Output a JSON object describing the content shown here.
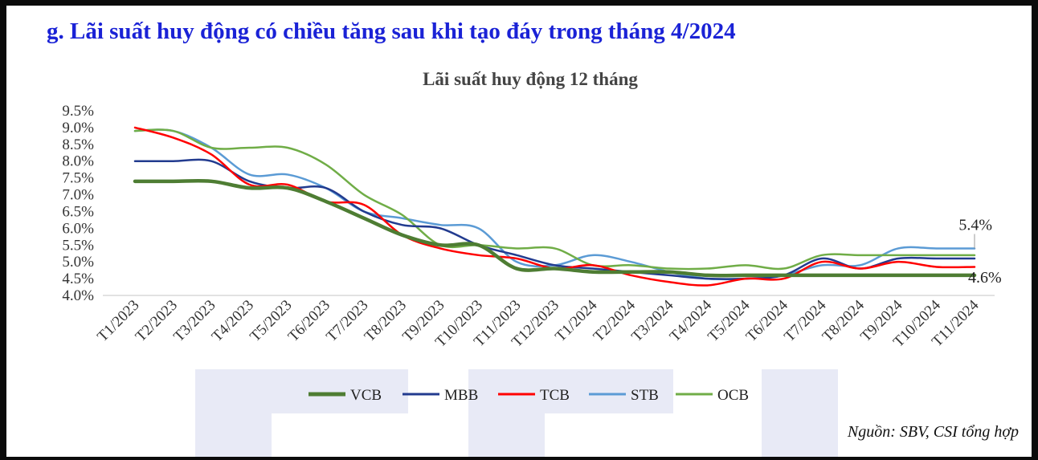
{
  "heading": "g. Lãi suất huy động có chiều tăng sau khi tạo đáy trong tháng 4/2024",
  "source": "Nguồn: SBV, CSI tổng hợp",
  "chart_data": {
    "type": "line",
    "title": "Lãi suất huy động 12 tháng",
    "xlabel": "",
    "ylabel": "",
    "ylim": [
      4.0,
      9.5
    ],
    "yticks": [
      "4.0%",
      "4.5%",
      "5.0%",
      "5.5%",
      "6.0%",
      "6.5%",
      "7.0%",
      "7.5%",
      "8.0%",
      "8.5%",
      "9.0%",
      "9.5%"
    ],
    "legend_position": "bottom",
    "grid": false,
    "categories": [
      "T1/2023",
      "T2/2023",
      "T3/2023",
      "T4/2023",
      "T5/2023",
      "T6/2023",
      "T7/2023",
      "T8/2023",
      "T9/2023",
      "T10/2023",
      "T11/2023",
      "T12/2023",
      "T1/2024",
      "T2/2024",
      "T3/2024",
      "T4/2024",
      "T5/2024",
      "T6/2024",
      "T7/2024",
      "T8/2024",
      "T9/2024",
      "T10/2024",
      "T11/2024"
    ],
    "series": [
      {
        "name": "VCB",
        "color": "#4e7d33",
        "width": 4.5,
        "values": [
          7.4,
          7.4,
          7.4,
          7.2,
          7.2,
          6.8,
          6.3,
          5.8,
          5.5,
          5.5,
          4.8,
          4.8,
          4.7,
          4.7,
          4.7,
          4.6,
          4.6,
          4.6,
          4.6,
          4.6,
          4.6,
          4.6,
          4.6
        ]
      },
      {
        "name": "MBB",
        "color": "#223b8f",
        "width": 2.5,
        "values": [
          8.0,
          8.0,
          8.0,
          7.4,
          7.2,
          7.2,
          6.5,
          6.1,
          6.0,
          5.5,
          5.2,
          4.9,
          4.8,
          4.7,
          4.6,
          4.5,
          4.5,
          4.6,
          5.1,
          4.8,
          5.1,
          5.1,
          5.1
        ]
      },
      {
        "name": "TCB",
        "color": "#ff0000",
        "width": 2.5,
        "values": [
          9.0,
          8.7,
          8.2,
          7.3,
          7.3,
          6.8,
          6.7,
          5.8,
          5.4,
          5.2,
          5.1,
          4.8,
          4.9,
          4.6,
          4.4,
          4.3,
          4.5,
          4.5,
          5.0,
          4.8,
          5.0,
          4.85,
          4.85
        ]
      },
      {
        "name": "STB",
        "color": "#5b9bd5",
        "width": 2.5,
        "values": [
          8.9,
          8.9,
          8.4,
          7.6,
          7.6,
          7.2,
          6.5,
          6.3,
          6.1,
          6.0,
          5.0,
          4.9,
          5.2,
          5.0,
          4.7,
          4.5,
          4.5,
          4.6,
          4.9,
          4.9,
          5.4,
          5.4,
          5.4
        ]
      },
      {
        "name": "OCB",
        "color": "#70ad47",
        "width": 2.5,
        "values": [
          8.9,
          8.9,
          8.4,
          8.4,
          8.4,
          7.9,
          7.0,
          6.4,
          5.5,
          5.5,
          5.4,
          5.4,
          4.9,
          4.9,
          4.8,
          4.8,
          4.9,
          4.8,
          5.2,
          5.2,
          5.2,
          5.2,
          5.2
        ]
      }
    ],
    "annotations": [
      {
        "text": "5.4%",
        "series": "STB",
        "index": 22
      },
      {
        "text": "4.6%",
        "series": "VCB",
        "index": 22
      }
    ]
  }
}
